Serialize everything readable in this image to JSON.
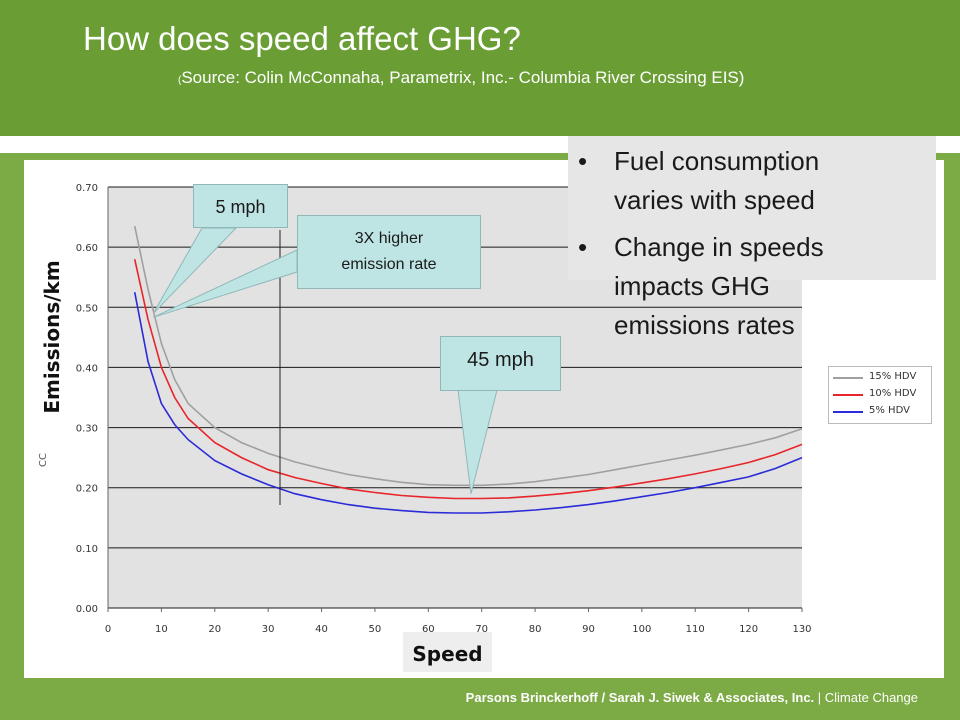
{
  "header": {
    "title": "How does speed affect GHG?",
    "source_paren": "(",
    "source": "Source: Colin McConnaha, Parametrix, Inc.- Columbia River Crossing EIS)"
  },
  "bullets": [
    {
      "symbol": "•",
      "lines": [
        "Fuel consumption",
        "varies with speed"
      ]
    },
    {
      "symbol": "•",
      "lines": [
        "Change in speeds",
        "impacts GHG",
        "emissions rates"
      ]
    }
  ],
  "callouts": {
    "five_mph": "5 mph",
    "three_x_line1": "3X higher",
    "three_x_line2": "emission rate",
    "forty_five_mph": "45 mph"
  },
  "axis_labels": {
    "y": "Emissions/km",
    "x": "Speed",
    "y_hidden_glyph": "CC"
  },
  "footer": {
    "bold": "Parsons Brinckerhoff / Sarah J. Siwek & Associates, Inc.",
    "rest": " | Climate Change"
  },
  "colors": {
    "series_15": "#a0a0a0",
    "series_10": "#e8252a",
    "series_5": "#2b2bd8",
    "plot_background": "#e2e2e2"
  },
  "chart_data": {
    "type": "line",
    "xlim": [
      0,
      130
    ],
    "ylim": [
      0,
      0.7
    ],
    "x_ticks": [
      0,
      10,
      20,
      30,
      40,
      50,
      60,
      70,
      80,
      90,
      100,
      110,
      120,
      130
    ],
    "y_ticks": [
      "0.00",
      "0.10",
      "0.20",
      "0.30",
      "0.40",
      "0.50",
      "0.60",
      "0.70"
    ],
    "grid": true,
    "legend_position": "right",
    "x": [
      5,
      7.5,
      10,
      12.5,
      15,
      20,
      25,
      30,
      35,
      40,
      45,
      50,
      55,
      60,
      65,
      70,
      75,
      80,
      85,
      90,
      95,
      100,
      105,
      110,
      115,
      120,
      125,
      130
    ],
    "series": [
      {
        "name": "15% HDV",
        "color": "#a0a0a0",
        "values": [
          0.635,
          0.53,
          0.44,
          0.38,
          0.34,
          0.3,
          0.275,
          0.257,
          0.243,
          0.232,
          0.222,
          0.215,
          0.209,
          0.205,
          0.204,
          0.204,
          0.206,
          0.21,
          0.216,
          0.222,
          0.23,
          0.238,
          0.246,
          0.254,
          0.263,
          0.272,
          0.283,
          0.298
        ]
      },
      {
        "name": "10% HDV",
        "color": "#e8252a",
        "values": [
          0.58,
          0.48,
          0.4,
          0.35,
          0.315,
          0.275,
          0.25,
          0.23,
          0.217,
          0.207,
          0.198,
          0.192,
          0.187,
          0.184,
          0.182,
          0.182,
          0.183,
          0.186,
          0.19,
          0.195,
          0.201,
          0.208,
          0.215,
          0.223,
          0.232,
          0.242,
          0.255,
          0.272
        ]
      },
      {
        "name": "5%  HDV",
        "color": "#2b2bd8",
        "values": [
          0.525,
          0.41,
          0.34,
          0.305,
          0.28,
          0.245,
          0.223,
          0.205,
          0.19,
          0.18,
          0.172,
          0.166,
          0.162,
          0.159,
          0.158,
          0.158,
          0.16,
          0.163,
          0.167,
          0.172,
          0.178,
          0.185,
          0.192,
          0.2,
          0.209,
          0.218,
          0.232,
          0.25
        ]
      }
    ]
  }
}
